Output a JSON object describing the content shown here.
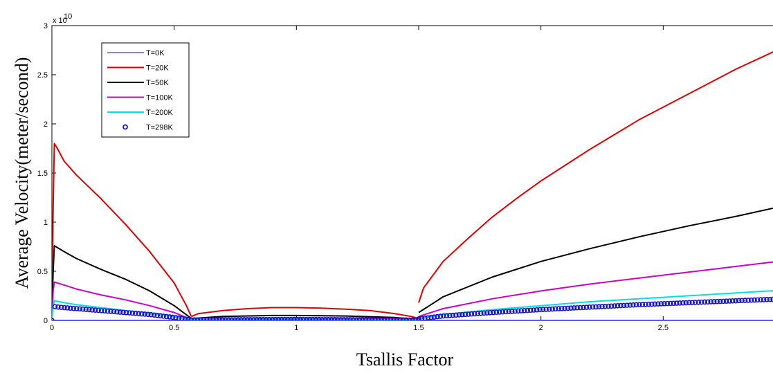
{
  "chart_data": {
    "type": "line",
    "title": "",
    "xlabel": "Tsallis Factor",
    "ylabel": "Average Velocity(meter/second)",
    "y_exponent_base": "x 10",
    "y_exponent_power": "10",
    "xlim": [
      0,
      3
    ],
    "ylim": [
      0,
      3
    ],
    "x_ticks": [
      0,
      0.5,
      1,
      1.5,
      2,
      2.5
    ],
    "x_tick_labels": [
      "0",
      "0.5",
      "1",
      "1.5",
      "2",
      "2.5"
    ],
    "y_ticks": [
      0,
      0.5,
      1,
      1.5,
      2,
      2.5,
      3
    ],
    "y_tick_labels": [
      "0",
      "0.5",
      "1",
      "1.5",
      "2",
      "2.5",
      "3"
    ],
    "grid": false,
    "legend_position": "top-left",
    "series": [
      {
        "name": "T=0K",
        "color": "#3b3bd6",
        "style": "line",
        "x": [
          0,
          3
        ],
        "y": [
          0,
          0
        ]
      },
      {
        "name": "T=20K",
        "color": "#e00000",
        "style": "line",
        "segments": [
          {
            "x": [
              0.0,
              0.005,
              0.01,
              0.02,
              0.05,
              0.1,
              0.2,
              0.3,
              0.4,
              0.5,
              0.55,
              0.57
            ],
            "y": [
              0.2,
              1.15,
              1.8,
              1.76,
              1.62,
              1.48,
              1.24,
              0.98,
              0.7,
              0.38,
              0.15,
              0.04
            ]
          },
          {
            "x": [
              0.57,
              0.6,
              0.7,
              0.8,
              0.9,
              1.0,
              1.1,
              1.2,
              1.3,
              1.4,
              1.47,
              1.5
            ],
            "y": [
              0.04,
              0.07,
              0.1,
              0.12,
              0.13,
              0.13,
              0.125,
              0.115,
              0.1,
              0.07,
              0.04,
              0.02
            ]
          },
          {
            "x": [
              1.5,
              1.52,
              1.6,
              1.7,
              1.8,
              1.9,
              2.0,
              2.2,
              2.4,
              2.6,
              2.8,
              3.0
            ],
            "y": [
              0.18,
              0.33,
              0.6,
              0.83,
              1.05,
              1.24,
              1.42,
              1.74,
              2.04,
              2.3,
              2.56,
              2.79
            ]
          }
        ]
      },
      {
        "name": "T=50K",
        "color": "#000000",
        "style": "line",
        "segments": [
          {
            "x": [
              0.0,
              0.005,
              0.01,
              0.05,
              0.1,
              0.2,
              0.3,
              0.4,
              0.5,
              0.57
            ],
            "y": [
              0.05,
              0.5,
              0.76,
              0.7,
              0.63,
              0.52,
              0.42,
              0.3,
              0.15,
              0.02
            ]
          },
          {
            "x": [
              0.57,
              0.7,
              0.9,
              1.0,
              1.2,
              1.4,
              1.5
            ],
            "y": [
              0.02,
              0.04,
              0.05,
              0.05,
              0.045,
              0.03,
              0.01
            ]
          },
          {
            "x": [
              1.5,
              1.55,
              1.6,
              1.8,
              2.0,
              2.2,
              2.4,
              2.6,
              2.8,
              3.0
            ],
            "y": [
              0.08,
              0.16,
              0.24,
              0.44,
              0.6,
              0.73,
              0.85,
              0.96,
              1.06,
              1.17
            ]
          }
        ]
      },
      {
        "name": "T=100K",
        "color": "#cc00cc",
        "style": "line",
        "segments": [
          {
            "x": [
              0.0,
              0.005,
              0.01,
              0.05,
              0.1,
              0.2,
              0.3,
              0.4,
              0.5,
              0.57
            ],
            "y": [
              0.02,
              0.3,
              0.39,
              0.36,
              0.32,
              0.26,
              0.21,
              0.15,
              0.08,
              0.01
            ]
          },
          {
            "x": [
              0.57,
              0.8,
              1.0,
              1.2,
              1.5
            ],
            "y": [
              0.01,
              0.02,
              0.025,
              0.02,
              0.01
            ]
          },
          {
            "x": [
              1.5,
              1.6,
              1.8,
              2.0,
              2.2,
              2.4,
              2.6,
              2.8,
              3.0
            ],
            "y": [
              0.04,
              0.12,
              0.22,
              0.3,
              0.37,
              0.43,
              0.49,
              0.55,
              0.61
            ]
          }
        ]
      },
      {
        "name": "T=200K",
        "color": "#00e0e0",
        "style": "line",
        "segments": [
          {
            "x": [
              0.0,
              0.005,
              0.01,
              0.05,
              0.1,
              0.2,
              0.3,
              0.4,
              0.5,
              0.57
            ],
            "y": [
              0.01,
              0.15,
              0.2,
              0.18,
              0.16,
              0.13,
              0.1,
              0.075,
              0.04,
              0.01
            ]
          },
          {
            "x": [
              0.57,
              1.0,
              1.5
            ],
            "y": [
              0.01,
              0.012,
              0.005
            ]
          },
          {
            "x": [
              1.5,
              1.6,
              1.8,
              2.0,
              2.2,
              2.4,
              2.6,
              2.8,
              3.0
            ],
            "y": [
              0.02,
              0.06,
              0.11,
              0.15,
              0.19,
              0.22,
              0.25,
              0.28,
              0.31
            ]
          }
        ]
      },
      {
        "name": "T=298K",
        "color": "#1414c8",
        "style": "markers",
        "marker": "circle",
        "segments": [
          {
            "x": [
              0.0,
              0.005,
              0.01,
              0.05,
              0.1,
              0.2,
              0.3,
              0.4,
              0.5,
              0.57
            ],
            "y": [
              0.0,
              0.12,
              0.14,
              0.13,
              0.12,
              0.1,
              0.08,
              0.06,
              0.03,
              0.005
            ]
          },
          {
            "x": [
              0.57,
              1.0,
              1.5
            ],
            "y": [
              0.005,
              0.01,
              0.004
            ]
          },
          {
            "x": [
              1.5,
              1.6,
              1.8,
              2.0,
              2.2,
              2.4,
              2.6,
              2.8,
              3.0
            ],
            "y": [
              0.015,
              0.045,
              0.08,
              0.11,
              0.135,
              0.16,
              0.18,
              0.2,
              0.22
            ]
          }
        ]
      }
    ]
  }
}
